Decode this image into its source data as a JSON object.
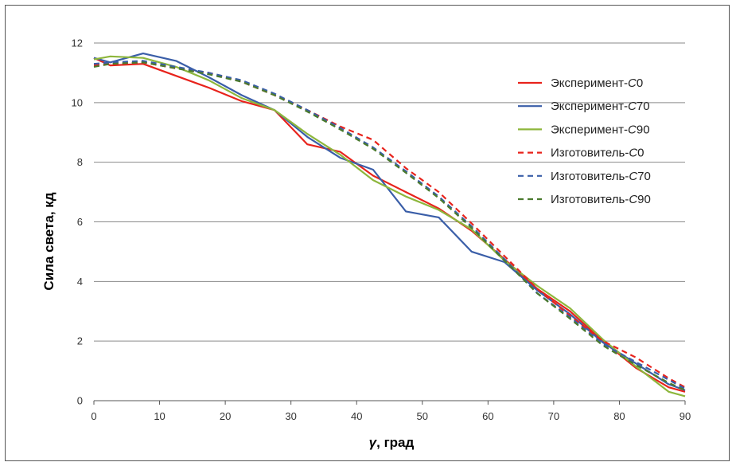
{
  "chart_data": {
    "type": "line",
    "xlabel_symbol": "γ",
    "xlabel_rest": ", град",
    "ylabel": "Сила света, кд",
    "xlim": [
      0,
      90
    ],
    "ylim": [
      0,
      12
    ],
    "xticks": [
      0,
      10,
      20,
      30,
      40,
      50,
      60,
      70,
      80,
      90
    ],
    "yticks": [
      0,
      2,
      4,
      6,
      8,
      10,
      12
    ],
    "grid": "horizontal",
    "legend_position": "right",
    "series": [
      {
        "name_prefix": "Эксперимент-",
        "name_symbol": "C",
        "name_suffix": "0",
        "color": "#e8231c",
        "dash": "solid",
        "x": [
          0,
          2.5,
          7.5,
          12.5,
          17.5,
          22.5,
          27.5,
          32.5,
          37.5,
          42.5,
          47.5,
          52.5,
          57.5,
          62.5,
          67.5,
          72.5,
          77.5,
          82.5,
          87.5,
          90
        ],
        "y": [
          11.5,
          11.25,
          11.3,
          10.9,
          10.5,
          10.05,
          9.75,
          8.6,
          8.35,
          7.55,
          7.0,
          6.45,
          5.7,
          4.75,
          3.75,
          3.0,
          2.0,
          1.1,
          0.45,
          0.3
        ]
      },
      {
        "name_prefix": "Эксперимент-",
        "name_symbol": "C",
        "name_suffix": "70",
        "color": "#3a5ea8",
        "dash": "solid",
        "x": [
          0,
          2.5,
          7.5,
          12.5,
          17.5,
          22.5,
          27.5,
          32.5,
          37.5,
          42.5,
          47.5,
          52.5,
          57.5,
          62.5,
          67.5,
          72.5,
          77.5,
          82.5,
          87.5,
          90
        ],
        "y": [
          11.5,
          11.35,
          11.65,
          11.4,
          10.85,
          10.25,
          9.75,
          8.85,
          8.15,
          7.75,
          6.35,
          6.15,
          5.0,
          4.65,
          3.7,
          2.9,
          1.95,
          1.25,
          0.55,
          0.35
        ]
      },
      {
        "name_prefix": "Эксперимент-",
        "name_symbol": "C",
        "name_suffix": "90",
        "color": "#8db63c",
        "dash": "solid",
        "x": [
          0,
          2.5,
          7.5,
          12.5,
          17.5,
          22.5,
          27.5,
          32.5,
          37.5,
          42.5,
          47.5,
          52.5,
          57.5,
          62.5,
          67.5,
          72.5,
          77.5,
          82.5,
          87.5,
          90
        ],
        "y": [
          11.45,
          11.55,
          11.5,
          11.2,
          10.75,
          10.15,
          9.75,
          8.95,
          8.25,
          7.4,
          6.85,
          6.4,
          5.75,
          4.7,
          3.85,
          3.1,
          2.05,
          1.15,
          0.3,
          0.15
        ]
      },
      {
        "name_prefix": "Изготовитель-",
        "name_symbol": "C",
        "name_suffix": "0",
        "color": "#e8231c",
        "dash": "dashed",
        "x": [
          0,
          2.5,
          7.5,
          12.5,
          17.5,
          22.5,
          27.5,
          32.5,
          37.5,
          42.5,
          47.5,
          52.5,
          57.5,
          62.5,
          67.5,
          72.5,
          77.5,
          82.5,
          87.5,
          90
        ],
        "y": [
          11.25,
          11.3,
          11.35,
          11.15,
          11.0,
          10.7,
          10.25,
          9.75,
          9.2,
          8.75,
          7.8,
          7.0,
          5.95,
          4.85,
          3.75,
          2.85,
          2.0,
          1.45,
          0.75,
          0.45
        ]
      },
      {
        "name_prefix": "Изготовитель-",
        "name_symbol": "C",
        "name_suffix": "70",
        "color": "#3a5ea8",
        "dash": "dashed",
        "x": [
          0,
          2.5,
          7.5,
          12.5,
          17.5,
          22.5,
          27.5,
          32.5,
          37.5,
          42.5,
          47.5,
          52.5,
          57.5,
          62.5,
          67.5,
          72.5,
          77.5,
          82.5,
          87.5,
          90
        ],
        "y": [
          11.3,
          11.35,
          11.4,
          11.2,
          11.0,
          10.75,
          10.3,
          9.75,
          9.15,
          8.5,
          7.7,
          6.85,
          5.85,
          4.75,
          3.6,
          2.8,
          1.9,
          1.3,
          0.7,
          0.4
        ]
      },
      {
        "name_prefix": "Изготовитель-",
        "name_symbol": "C",
        "name_suffix": "90",
        "color": "#4a7a2e",
        "dash": "dashed",
        "x": [
          0,
          2.5,
          7.5,
          12.5,
          17.5,
          22.5,
          27.5,
          32.5,
          37.5,
          42.5,
          47.5,
          52.5,
          57.5,
          62.5,
          67.5,
          72.5,
          77.5,
          82.5,
          87.5,
          90
        ],
        "y": [
          11.2,
          11.3,
          11.35,
          11.15,
          10.95,
          10.7,
          10.25,
          9.7,
          9.1,
          8.45,
          7.65,
          6.8,
          5.8,
          4.7,
          3.6,
          2.75,
          1.85,
          1.2,
          0.6,
          0.35
        ]
      }
    ]
  }
}
